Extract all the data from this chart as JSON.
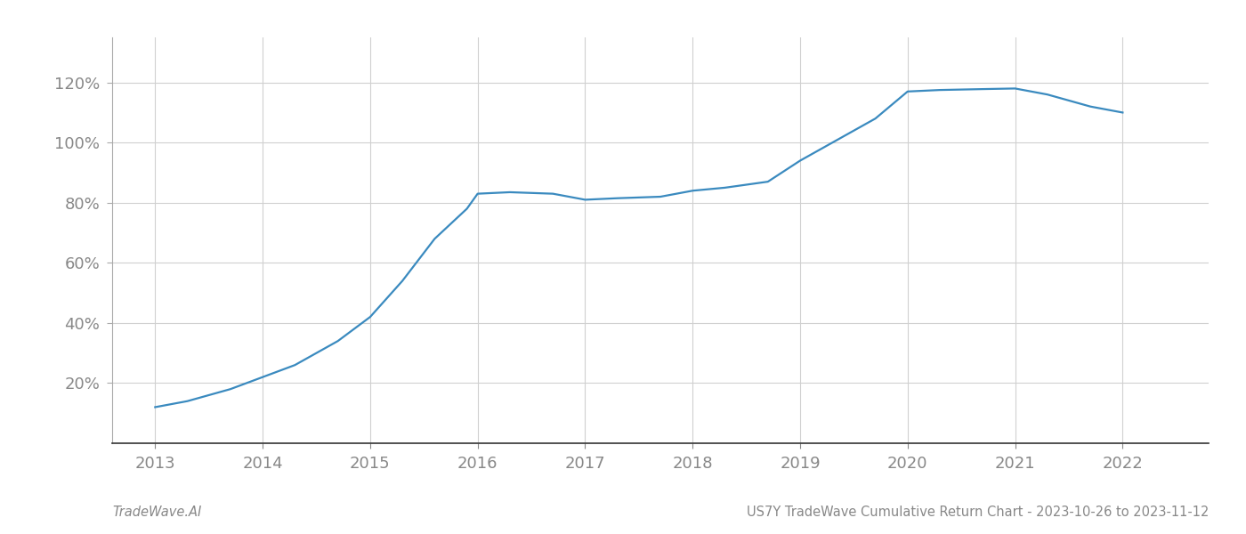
{
  "x_values": [
    2013.0,
    2013.3,
    2013.7,
    2014.0,
    2014.3,
    2014.7,
    2015.0,
    2015.3,
    2015.6,
    2015.9,
    2016.0,
    2016.3,
    2016.7,
    2017.0,
    2017.3,
    2017.7,
    2018.0,
    2018.3,
    2018.7,
    2019.0,
    2019.3,
    2019.7,
    2020.0,
    2020.3,
    2020.7,
    2021.0,
    2021.3,
    2021.7,
    2022.0
  ],
  "y_values": [
    12,
    14,
    18,
    22,
    26,
    34,
    42,
    54,
    68,
    78,
    83,
    83.5,
    83,
    81,
    81.5,
    82,
    84,
    85,
    87,
    94,
    100,
    108,
    117,
    117.5,
    117.8,
    118,
    116,
    112,
    110
  ],
  "line_color": "#3a8abf",
  "line_width": 1.6,
  "footer_left": "TradeWave.AI",
  "footer_right": "US7Y TradeWave Cumulative Return Chart - 2023-10-26 to 2023-11-12",
  "yticks": [
    20,
    40,
    60,
    80,
    100,
    120
  ],
  "xticks": [
    2013,
    2014,
    2015,
    2016,
    2017,
    2018,
    2019,
    2020,
    2021,
    2022
  ],
  "xlim": [
    2012.6,
    2022.8
  ],
  "ylim": [
    0,
    135
  ],
  "grid_color": "#d0d0d0",
  "background_color": "#ffffff",
  "tick_label_color": "#888888",
  "footer_fontsize": 10.5,
  "axis_tick_fontsize": 13
}
